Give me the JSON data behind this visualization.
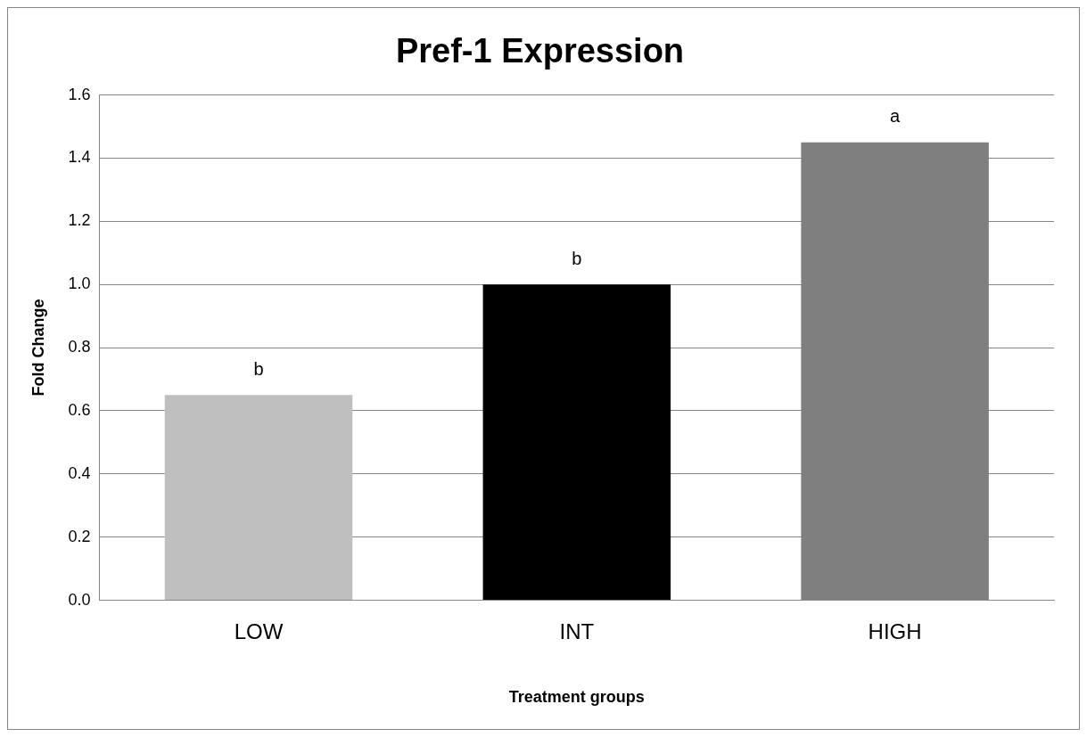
{
  "chart_data": {
    "type": "bar",
    "title": "Pref-1 Expression",
    "xlabel": "Treatment groups",
    "ylabel": "Fold Change",
    "categories": [
      "LOW",
      "INT",
      "HIGH"
    ],
    "values": [
      0.65,
      1.0,
      1.45
    ],
    "colors": [
      "#bfbfbf",
      "#000000",
      "#7f7f7f"
    ],
    "ylim": [
      0,
      1.6
    ],
    "yticks": [
      {
        "value": 0,
        "label": "0.0"
      },
      {
        "value": 0.2,
        "label": "0.2"
      },
      {
        "value": 0.4,
        "label": "0.4"
      },
      {
        "value": 0.6,
        "label": "0.6"
      },
      {
        "value": 0.8,
        "label": "0.8"
      },
      {
        "value": 1.0,
        "label": "1.0"
      },
      {
        "value": 1.2,
        "label": "1.2"
      },
      {
        "value": 1.4,
        "label": "1.4"
      },
      {
        "value": 1.6,
        "label": "1.6"
      }
    ],
    "grid": "y",
    "legend": false,
    "annotations": [
      {
        "text": "b",
        "x": "LOW",
        "y": 0.65
      },
      {
        "text": "b",
        "x": "INT",
        "y": 1.0
      },
      {
        "text": "a",
        "x": "HIGH",
        "y": 1.45
      }
    ]
  }
}
